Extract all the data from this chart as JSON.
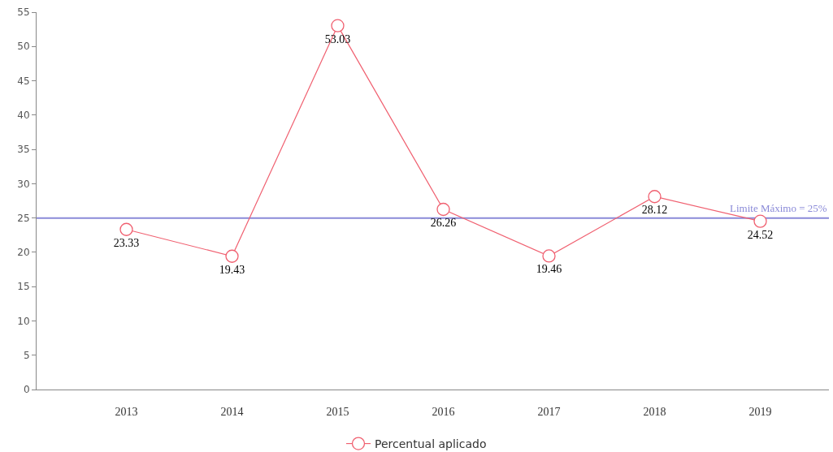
{
  "chart_data": {
    "type": "line",
    "categories": [
      "2013",
      "2014",
      "2015",
      "2016",
      "2017",
      "2018",
      "2019"
    ],
    "series": [
      {
        "name": "Percentual aplicado",
        "color": "#f06070",
        "values": [
          23.33,
          19.43,
          53.03,
          26.26,
          19.46,
          28.12,
          24.52
        ]
      }
    ],
    "ylim": [
      0,
      55
    ],
    "yticks": [
      0,
      5,
      10,
      15,
      20,
      25,
      30,
      35,
      40,
      45,
      50,
      55
    ],
    "ref_lines": [
      {
        "axis": "y",
        "value": 25,
        "label": "Limite Máximo = 25%",
        "color": "#8a8ad8"
      }
    ],
    "data_labels": true,
    "grid": false,
    "legend": "bottom",
    "marker": "circle",
    "line_style": "solid"
  }
}
